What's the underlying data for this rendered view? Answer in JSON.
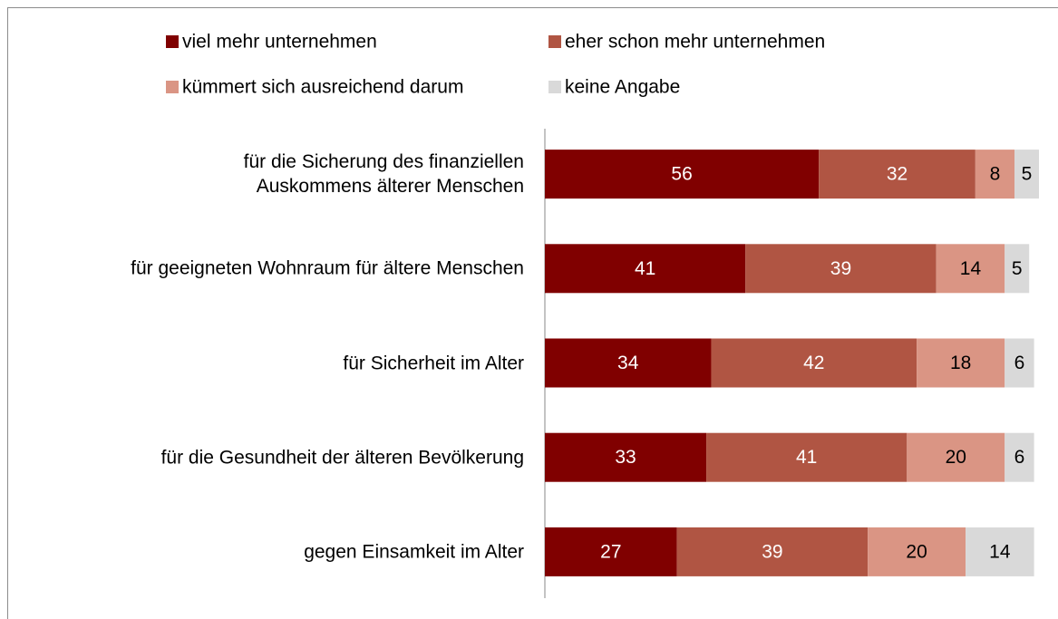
{
  "chart_data": {
    "type": "stacked_bar_horizontal",
    "categories": [
      "für die Sicherung des finanziellen\nAuskommens älterer Menschen",
      "für geeigneten Wohnraum für ältere Menschen",
      "für Sicherheit im Alter",
      "für die Gesundheit der älteren Bevölkerung",
      "gegen Einsamkeit im Alter"
    ],
    "series": [
      {
        "name": "viel mehr unternehmen",
        "color": "#800000",
        "label_color": "#ffffff",
        "values": [
          56,
          41,
          34,
          33,
          27
        ]
      },
      {
        "name": "eher schon mehr unternehmen",
        "color": "#b05543",
        "label_color": "#ffffff",
        "values": [
          32,
          39,
          42,
          41,
          39
        ]
      },
      {
        "name": "kümmert sich ausreichend darum",
        "color": "#da9584",
        "label_color": "#000000",
        "values": [
          8,
          14,
          18,
          20,
          20
        ]
      },
      {
        "name": "keine Angabe",
        "color": "#d9d9d9",
        "label_color": "#000000",
        "values": [
          5,
          5,
          6,
          6,
          14
        ]
      }
    ],
    "xlim": [
      0,
      101
    ],
    "legend": "top"
  }
}
